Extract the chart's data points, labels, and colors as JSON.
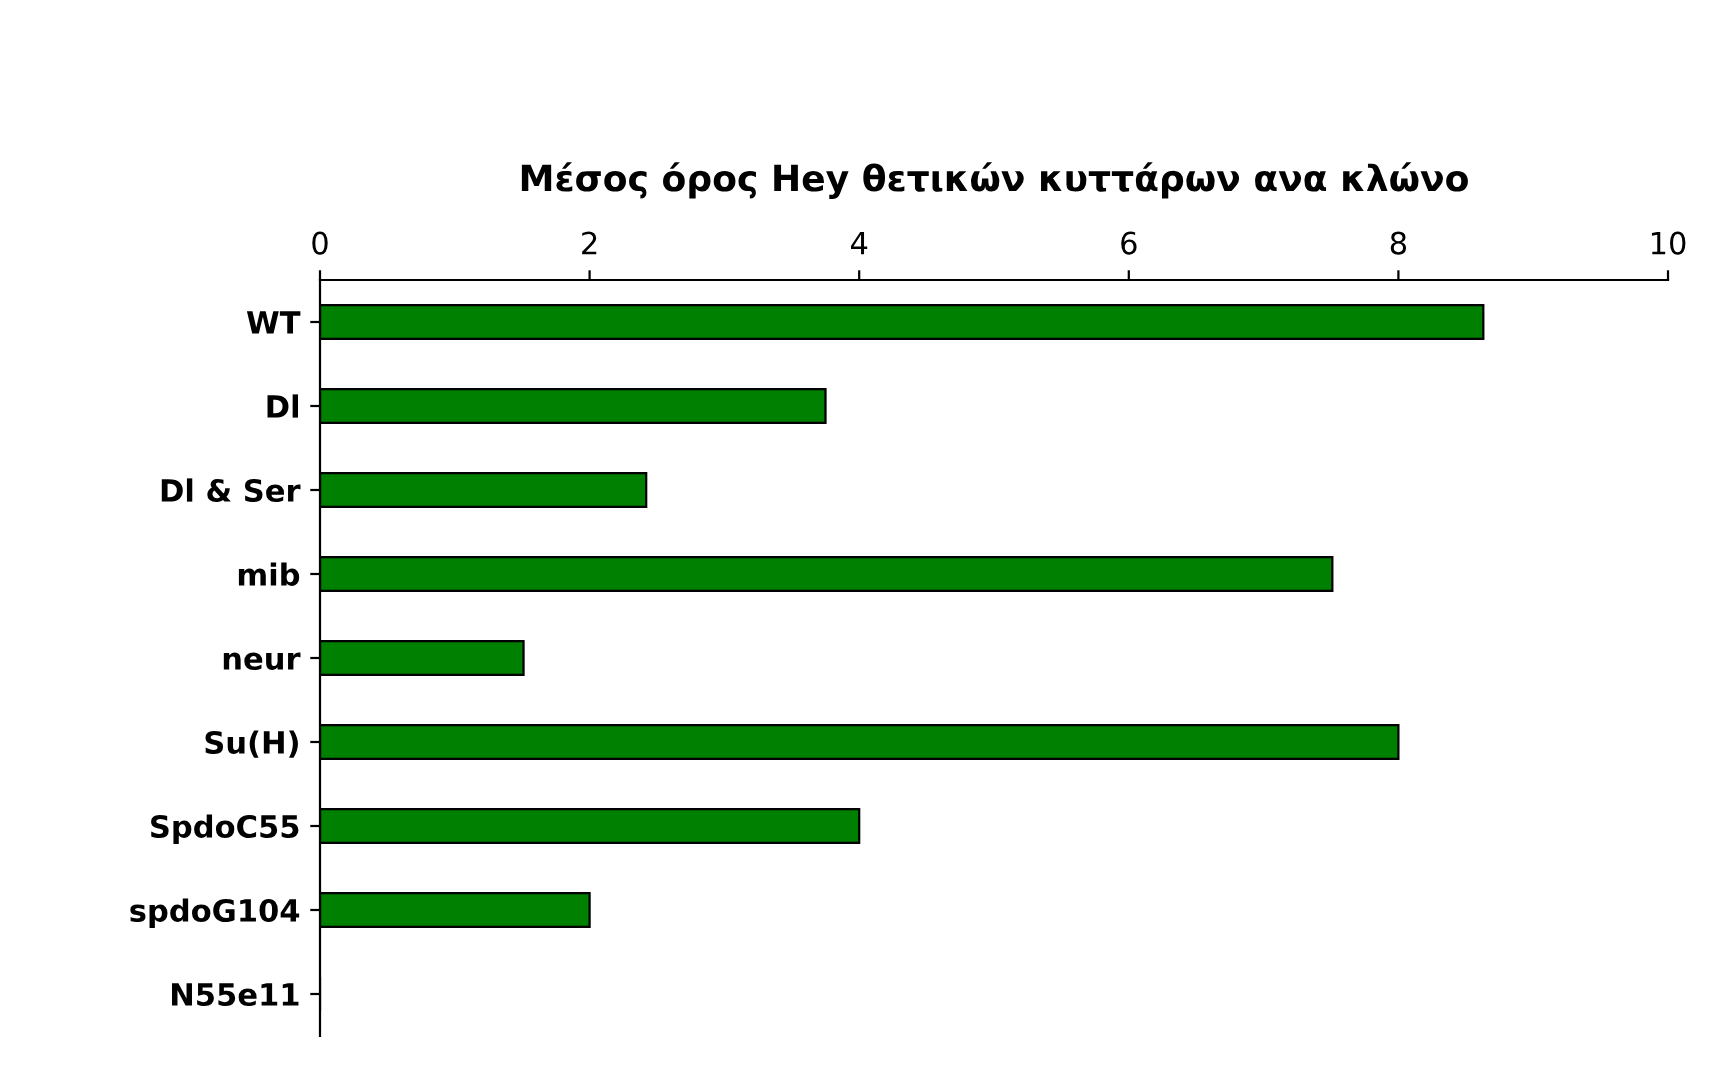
{
  "chart_data": {
    "type": "bar",
    "orientation": "horizontal",
    "title": "Μέσος όρος Hey θετικών κυττάρων ανα κλώνο",
    "categories": [
      "WT",
      "Dl",
      "Dl & Ser",
      "mib",
      "neur",
      "Su(H)",
      "SpdoC55",
      "spdoG104",
      "N55e11"
    ],
    "values": [
      8.63,
      3.75,
      2.42,
      7.51,
      1.51,
      8.0,
      4.0,
      2.0,
      0
    ],
    "color": "#008000",
    "xlim": [
      0,
      10
    ],
    "xticks": [
      0,
      2,
      4,
      6,
      8,
      10
    ],
    "grid": false
  }
}
